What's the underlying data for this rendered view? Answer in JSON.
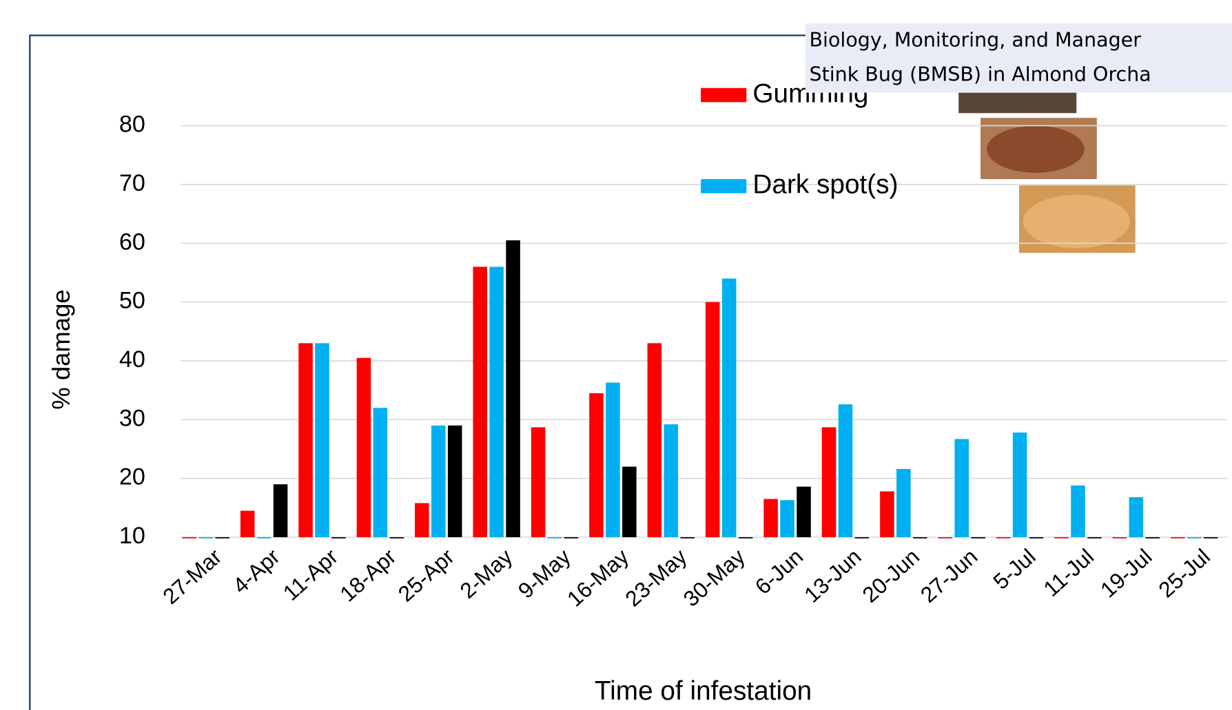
{
  "chart_data": {
    "type": "bar",
    "overlay_title": [
      "Biology, Monitoring, and Manager",
      "Stink Bug (BMSB) in Almond Orcha"
    ],
    "x_label": "Time of infestation",
    "y_label": "% damage",
    "categories": [
      "27-Mar",
      "4-Apr",
      "11-Apr",
      "18-Apr",
      "25-Apr",
      "2-May",
      "9-May",
      "16-May",
      "23-May",
      "30-May",
      "6-Jun",
      "13-Jun",
      "20-Jun",
      "27-Jun",
      "5-Jul",
      "11-Jul",
      "19-Jul",
      "25-Jul"
    ],
    "series": [
      {
        "name": "Gumming",
        "color": "#ff0000",
        "values": [
          10,
          14.5,
          43,
          40.5,
          15.8,
          56,
          28.7,
          34.5,
          43,
          50,
          16.5,
          28.7,
          17.8,
          10,
          10,
          10,
          10,
          10
        ]
      },
      {
        "name": "Dark spot(s)",
        "color": "#00b0f0",
        "values": [
          10,
          10,
          43,
          32,
          29,
          56,
          10,
          36.3,
          29.2,
          54,
          16.3,
          32.6,
          21.6,
          26.7,
          27.8,
          18.8,
          16.8,
          10
        ]
      },
      {
        "color": "#000000",
        "values": [
          10,
          19,
          10,
          10,
          29,
          60.5,
          10,
          22,
          10,
          10,
          18.6,
          10,
          10,
          10,
          10,
          10,
          10,
          10
        ]
      }
    ],
    "ylim": [
      10,
      80
    ],
    "yticks": [
      10,
      20,
      30,
      40,
      50,
      60,
      70,
      80
    ],
    "grid": true
  }
}
